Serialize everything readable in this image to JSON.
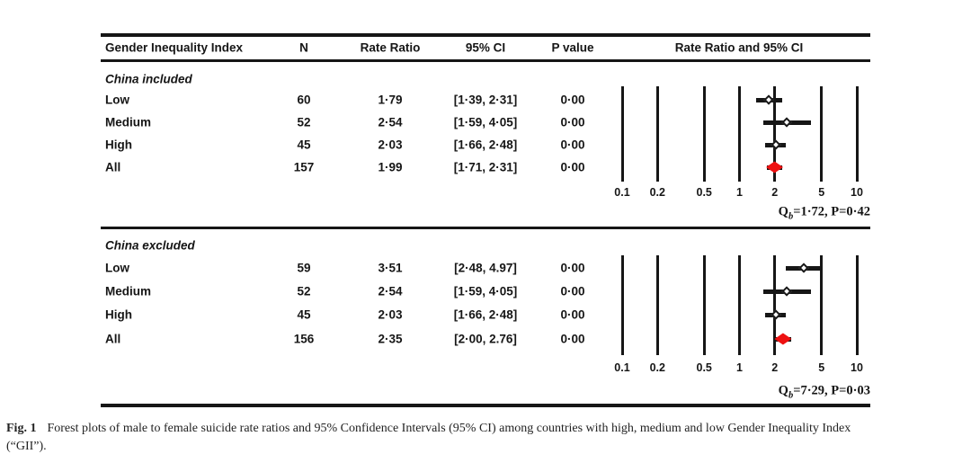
{
  "colors": {
    "marker_red": "#ee1111",
    "ink": "#161616"
  },
  "header": {
    "gii": "Gender Inequality Index",
    "n": "N",
    "rate_ratio": "Rate Ratio",
    "ci": "95% CI",
    "p_value": "P value",
    "plot": "Rate Ratio and 95% CI"
  },
  "chart_data": [
    {
      "type": "forest",
      "panel_label": "China included",
      "x_scale": "log",
      "x_ticks": [
        0.1,
        0.2,
        0.5,
        1,
        2,
        5,
        10
      ],
      "tick_labels": [
        "0.1",
        "0.2",
        "0.5",
        "1",
        "2",
        "5",
        "10"
      ],
      "rows": [
        {
          "label": "Low",
          "n": "60",
          "rate_ratio": "1·79",
          "rr": 1.79,
          "ci": [
            1.39,
            2.31
          ],
          "ci_text": "[1·39, 2·31]",
          "p": "0·00",
          "marker": "open"
        },
        {
          "label": "Medium",
          "n": "52",
          "rate_ratio": "2·54",
          "rr": 2.54,
          "ci": [
            1.59,
            4.05
          ],
          "ci_text": "[1·59, 4·05]",
          "p": "0·00",
          "marker": "open"
        },
        {
          "label": "High",
          "n": "45",
          "rate_ratio": "2·03",
          "rr": 2.03,
          "ci": [
            1.66,
            2.48
          ],
          "ci_text": "[1·66, 2·48]",
          "p": "0·00",
          "marker": "open"
        },
        {
          "label": "All",
          "n": "157",
          "rate_ratio": "1·99",
          "rr": 1.99,
          "ci": [
            1.71,
            2.31
          ],
          "ci_text": "[1·71, 2·31]",
          "p": "0·00",
          "marker": "summary"
        }
      ],
      "stat": {
        "q": "Q",
        "q_sub": "b",
        "rest": "=1·72, P=0·42"
      }
    },
    {
      "type": "forest",
      "panel_label": "China excluded",
      "x_scale": "log",
      "x_ticks": [
        0.1,
        0.2,
        0.5,
        1,
        2,
        5,
        10
      ],
      "tick_labels": [
        "0.1",
        "0.2",
        "0.5",
        "1",
        "2",
        "5",
        "10"
      ],
      "rows": [
        {
          "label": "Low",
          "n": "59",
          "rate_ratio": "3·51",
          "rr": 3.51,
          "ci": [
            2.48,
            4.97
          ],
          "ci_text": "[2·48, 4.97]",
          "p": "0·00",
          "marker": "open"
        },
        {
          "label": "Medium",
          "n": "52",
          "rate_ratio": "2·54",
          "rr": 2.54,
          "ci": [
            1.59,
            4.05
          ],
          "ci_text": "[1·59, 4·05]",
          "p": "0·00",
          "marker": "open"
        },
        {
          "label": "High",
          "n": "45",
          "rate_ratio": "2·03",
          "rr": 2.03,
          "ci": [
            1.66,
            2.48
          ],
          "ci_text": "[1·66, 2·48]",
          "p": "0·00",
          "marker": "open"
        },
        {
          "label": "All",
          "n": "156",
          "rate_ratio": "2·35",
          "rr": 2.35,
          "ci": [
            2.0,
            2.76
          ],
          "ci_text": "[2·00, 2.76]",
          "p": "0·00",
          "marker": "summary"
        }
      ],
      "stat": {
        "q": "Q",
        "q_sub": "b",
        "rest": "=7·29, P=0·03"
      }
    }
  ],
  "caption": {
    "fig_label": "Fig. 1",
    "line1": "Forest plots of male to female suicide rate ratios and 95% Confidence Intervals (95% CI) among countries with high, medium and low Gender Inequality Index",
    "line2": "(“GII”)."
  }
}
